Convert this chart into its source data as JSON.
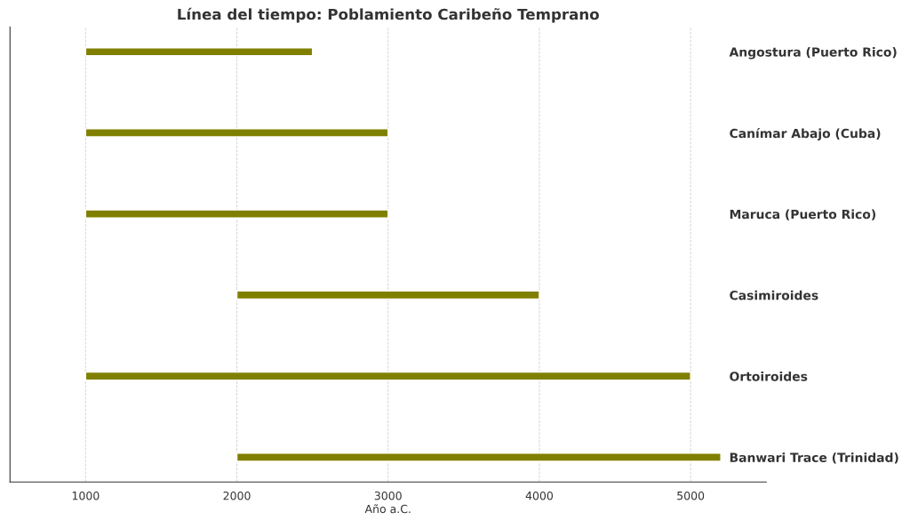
{
  "chart_data": {
    "type": "bar",
    "orientation": "horizontal",
    "title": "Línea del tiempo: Poblamiento Caribeño Temprano",
    "xlabel": "Año a.C.",
    "categories": [
      "Angostura (Puerto Rico)",
      "Canímar Abajo (Cuba)",
      "Maruca (Puerto Rico)",
      "Casimiroides",
      "Ortoiroides",
      "Banwari Trace (Trinidad)"
    ],
    "base": [
      1000,
      1000,
      1000,
      2000,
      1000,
      2000
    ],
    "values": [
      1500,
      2000,
      2000,
      2000,
      4000,
      3200
    ],
    "color": "#808000",
    "xlim": [
      500,
      5500
    ],
    "xticks": [
      1000,
      2000,
      3000,
      4000,
      5000
    ],
    "grid": "x"
  }
}
